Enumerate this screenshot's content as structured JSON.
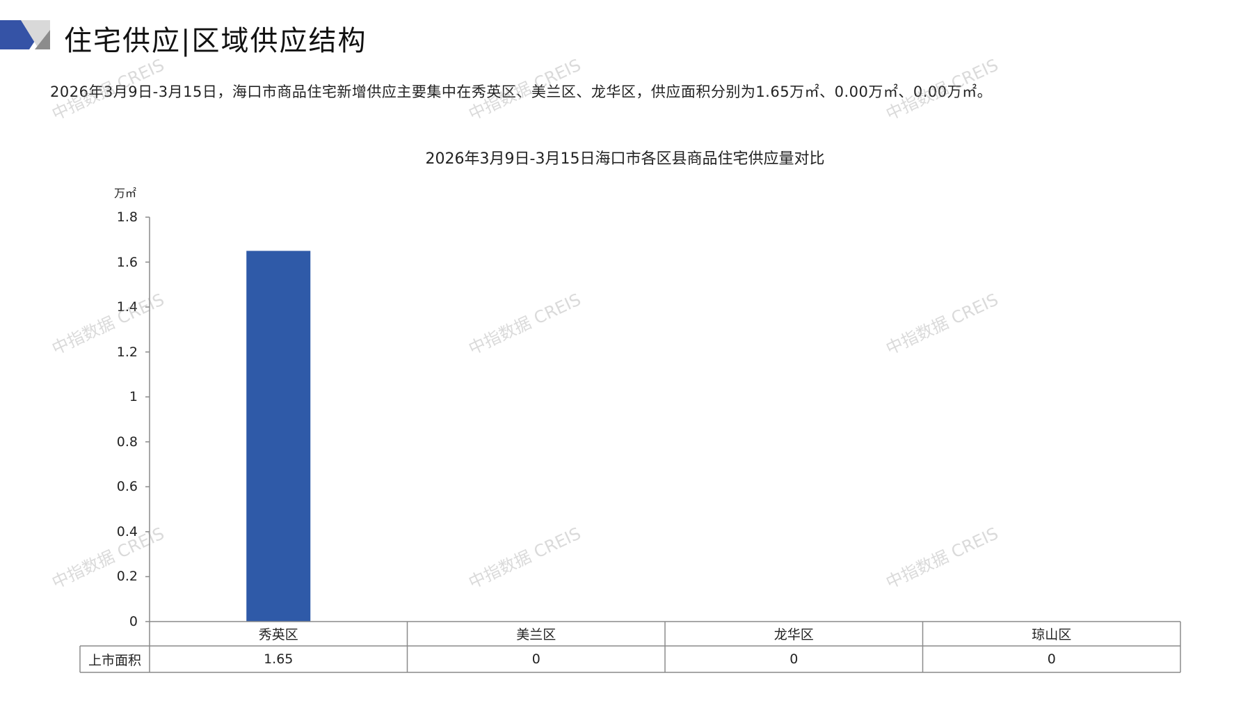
{
  "header": {
    "title": "住宅供应|区域供应结构",
    "logo_colors": [
      "#3553A6",
      "#D9D9D9",
      "#8C8C8C"
    ]
  },
  "summary": "2026年3月9日-3月15日，海口市商品住宅新增供应主要集中在秀英区、美兰区、龙华区，供应面积分别为1.65万㎡、0.00万㎡、0.00万㎡。",
  "watermark": "中指数据 CREIS",
  "chart_data": {
    "type": "bar",
    "title": "2026年3月9日-3月15日海口市各区县商品住宅供应量对比",
    "ylabel": "万㎡",
    "xlabel": "",
    "categories": [
      "秀英区",
      "美兰区",
      "龙华区",
      "琼山区"
    ],
    "series": [
      {
        "name": "上市面积",
        "values": [
          1.65,
          0,
          0,
          0
        ],
        "color": "#2F5AA8"
      }
    ],
    "value_labels": [
      "1.65",
      "0",
      "0",
      "0"
    ],
    "ylim": [
      0,
      1.8
    ],
    "yticks": [
      "0",
      "0.2",
      "0.4",
      "0.6",
      "0.8",
      "1",
      "1.2",
      "1.4",
      "1.6",
      "1.8"
    ],
    "grid": false,
    "legend": "data-table"
  }
}
